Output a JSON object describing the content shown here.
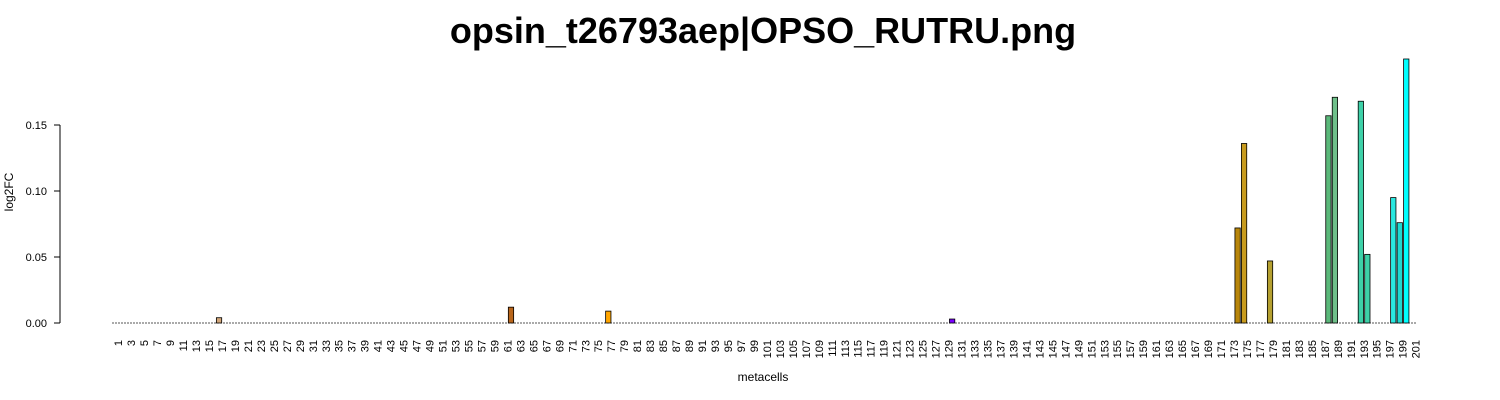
{
  "chart_data": {
    "type": "bar",
    "title": "opsin_t26793aep|OPSO_RUTRU.png",
    "xlabel": "metacells",
    "ylabel": "log2FC",
    "ylim": [
      0,
      0.2
    ],
    "yticks": [
      "0.00",
      "0.05",
      "0.10",
      "0.15"
    ],
    "ytick_values": [
      0,
      0.05,
      0.1,
      0.15
    ],
    "x_range": [
      1,
      201
    ],
    "xtick_labels": [
      "1",
      "3",
      "5",
      "7",
      "9",
      "11",
      "13",
      "15",
      "17",
      "19",
      "21",
      "23",
      "25",
      "27",
      "29",
      "31",
      "33",
      "35",
      "37",
      "39",
      "41",
      "43",
      "45",
      "47",
      "49",
      "51",
      "53",
      "55",
      "57",
      "59",
      "61",
      "63",
      "65",
      "67",
      "69",
      "71",
      "73",
      "75",
      "77",
      "79",
      "81",
      "83",
      "85",
      "87",
      "89",
      "91",
      "93",
      "95",
      "97",
      "99",
      "101",
      "103",
      "105",
      "107",
      "109",
      "111",
      "113",
      "115",
      "117",
      "119",
      "121",
      "123",
      "125",
      "127",
      "129",
      "131",
      "133",
      "135",
      "137",
      "139",
      "141",
      "143",
      "145",
      "147",
      "149",
      "151",
      "153",
      "155",
      "157",
      "159",
      "161",
      "163",
      "165",
      "167",
      "169",
      "171",
      "173",
      "175",
      "177",
      "179",
      "181",
      "183",
      "185",
      "187",
      "189",
      "191",
      "193",
      "195",
      "197",
      "199",
      "201"
    ],
    "bars": [
      {
        "metacell": 17,
        "value": 0.004,
        "color": "#d2a679"
      },
      {
        "metacell": 62,
        "value": 0.012,
        "color": "#b8651b"
      },
      {
        "metacell": 77,
        "value": 0.009,
        "color": "#ffa500"
      },
      {
        "metacell": 130,
        "value": 0.003,
        "color": "#7b00ff"
      },
      {
        "metacell": 174,
        "value": 0.072,
        "color": "#b8860b"
      },
      {
        "metacell": 175,
        "value": 0.136,
        "color": "#c89b1e"
      },
      {
        "metacell": 179,
        "value": 0.047,
        "color": "#b5a030"
      },
      {
        "metacell": 188,
        "value": 0.157,
        "color": "#5ab87a"
      },
      {
        "metacell": 189,
        "value": 0.171,
        "color": "#6fc08a"
      },
      {
        "metacell": 193,
        "value": 0.168,
        "color": "#3dd1a8"
      },
      {
        "metacell": 194,
        "value": 0.052,
        "color": "#3dd1a8"
      },
      {
        "metacell": 198,
        "value": 0.095,
        "color": "#2ae8e0"
      },
      {
        "metacell": 199,
        "value": 0.076,
        "color": "#20d8d0"
      },
      {
        "metacell": 200,
        "value": 0.2,
        "color": "#00ffff"
      }
    ]
  }
}
